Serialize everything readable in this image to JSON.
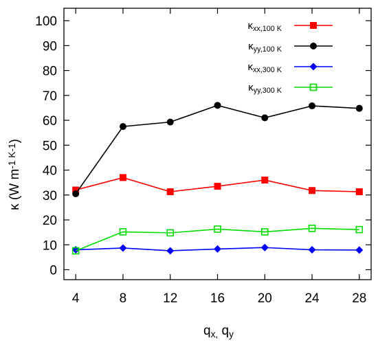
{
  "chart_data": {
    "type": "line",
    "title": "",
    "xlabel": "q_x, q_y",
    "ylabel": "κ (W m^-1 K^-1)",
    "xlim": [
      3,
      29
    ],
    "ylim": [
      -4,
      105
    ],
    "x": [
      4,
      8,
      12,
      16,
      20,
      24,
      28
    ],
    "x_ticks": [
      4,
      8,
      12,
      16,
      20,
      24,
      28
    ],
    "y_ticks": [
      0,
      10,
      20,
      30,
      40,
      50,
      60,
      70,
      80,
      90,
      100
    ],
    "legend_position": "top-right",
    "series": [
      {
        "name": "κ_xx,100 K",
        "color": "#ff0000",
        "marker": "filled-square",
        "values": [
          32.0,
          37.0,
          31.3,
          33.5,
          36.0,
          31.8,
          31.3
        ]
      },
      {
        "name": "κ_yy,100 K",
        "color": "#000000",
        "marker": "filled-circle",
        "values": [
          30.5,
          57.5,
          59.3,
          66.0,
          61.0,
          65.8,
          64.8
        ]
      },
      {
        "name": "κ_xx,300 K",
        "color": "#0000ff",
        "marker": "filled-diamond",
        "values": [
          8.0,
          8.7,
          7.6,
          8.3,
          8.9,
          8.0,
          7.9
        ]
      },
      {
        "name": "κ_yy,300 K",
        "color": "#00dd00",
        "marker": "open-square",
        "values": [
          7.6,
          15.2,
          14.8,
          16.3,
          15.2,
          16.6,
          16.1
        ]
      }
    ]
  }
}
